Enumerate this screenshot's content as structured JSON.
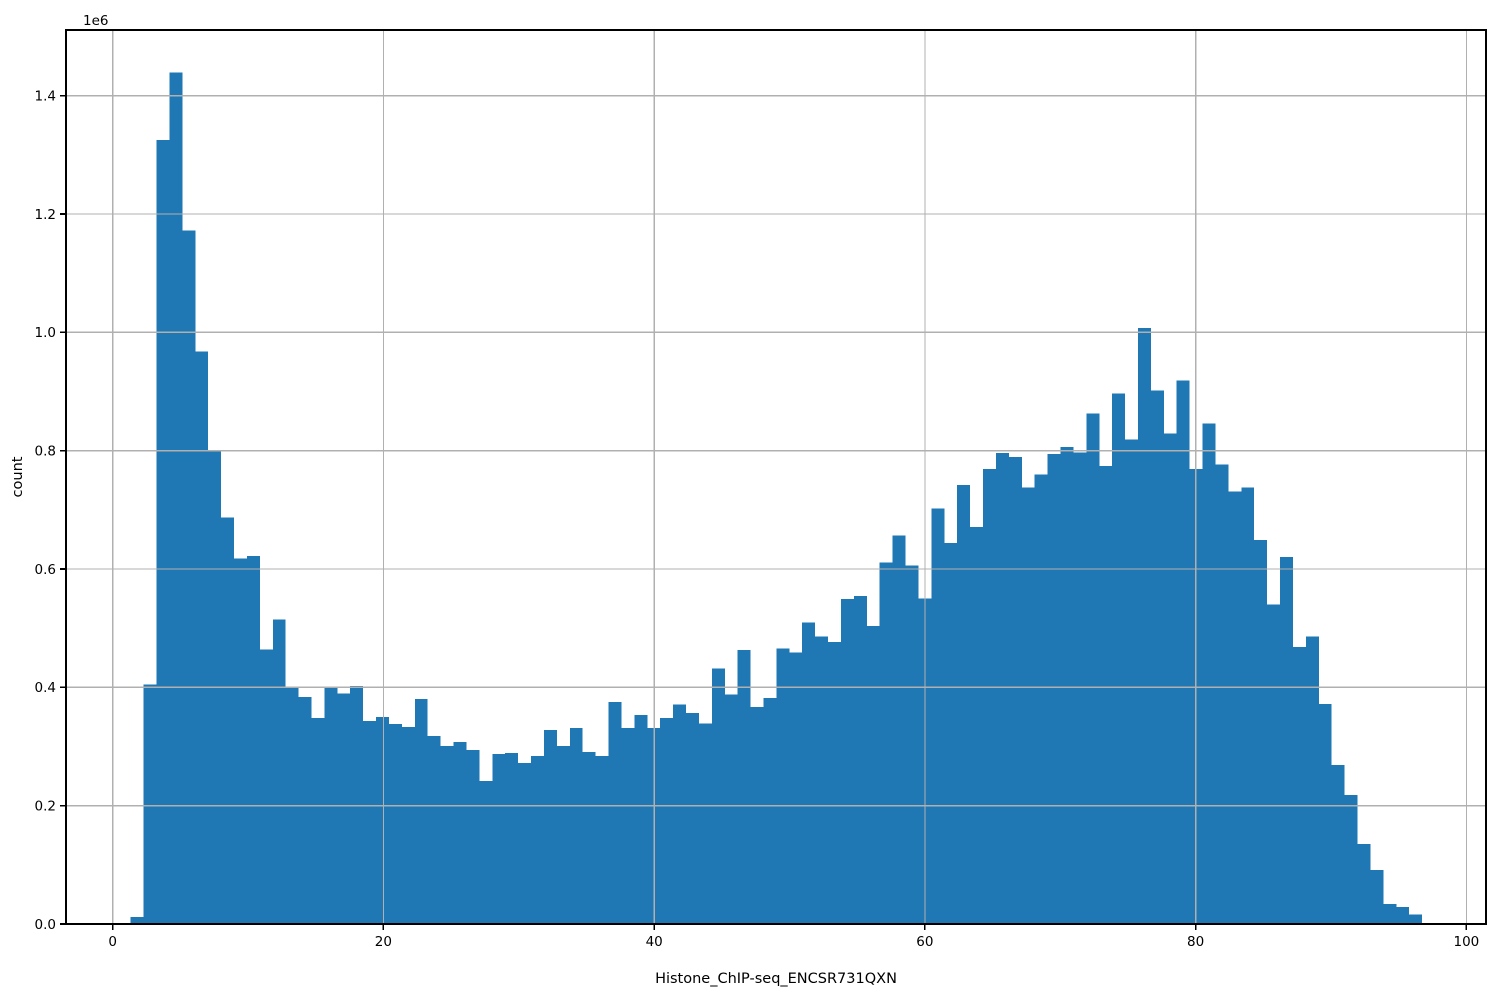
{
  "figure": {
    "background_color": "#ffffff"
  },
  "chart_data": {
    "type": "bar",
    "subtype": "histogram",
    "title": "",
    "xlabel": "Histone_ChIP-seq_ENCSR731QXN",
    "ylabel": "count",
    "y_offset_text": "1e6",
    "bar_color": "#1f77b4",
    "grid_color": "#b0b0b0",
    "spine_color": "#000000",
    "tick_color": "#000000",
    "grid": true,
    "legend_position": "none",
    "xlim": [
      -3.45,
      101.45
    ],
    "ylim": [
      0,
      1511000
    ],
    "xtick_values": [
      0,
      20,
      40,
      60,
      80,
      100
    ],
    "xtick_labels": [
      "0",
      "20",
      "40",
      "60",
      "80",
      "100"
    ],
    "ytick_values": [
      0,
      200000,
      400000,
      600000,
      800000,
      1000000,
      1200000,
      1400000
    ],
    "ytick_labels": [
      "0.0",
      "0.2",
      "0.4",
      "0.6",
      "0.8",
      "1.0",
      "1.2",
      "1.4"
    ],
    "bin_start": 1.33,
    "bin_width": 0.954,
    "counts": [
      12000,
      405000,
      1325000,
      1439000,
      1172000,
      968000,
      800000,
      687000,
      618000,
      622000,
      464000,
      515000,
      399000,
      384000,
      348000,
      399000,
      390000,
      402000,
      343000,
      350000,
      338000,
      333000,
      380000,
      318000,
      301000,
      308000,
      294000,
      242000,
      287000,
      289000,
      272000,
      284000,
      328000,
      301000,
      331000,
      291000,
      284000,
      375000,
      331000,
      353000,
      331000,
      348000,
      371000,
      357000,
      339000,
      432000,
      388000,
      463000,
      367000,
      382000,
      466000,
      459000,
      510000,
      486000,
      477000,
      549000,
      554000,
      504000,
      611000,
      657000,
      606000,
      550000,
      702000,
      644000,
      742000,
      671000,
      769000,
      796000,
      789000,
      738000,
      760000,
      794000,
      806000,
      797000,
      863000,
      774000,
      897000,
      819000,
      1007000,
      902000,
      829000,
      919000,
      769000,
      846000,
      777000,
      731000,
      738000,
      649000,
      540000,
      620000,
      468000,
      486000,
      372000,
      269000,
      218000,
      135000,
      91000,
      34000,
      29000,
      16000
    ]
  }
}
